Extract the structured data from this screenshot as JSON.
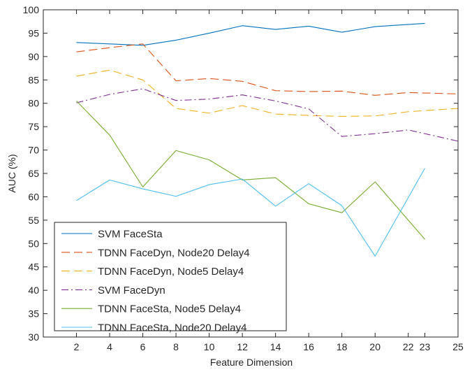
{
  "chart_data": {
    "type": "line",
    "title": "",
    "xlabel": "Feature Dimension",
    "ylabel": "AUC (%)",
    "xlim": [
      0,
      25
    ],
    "ylim": [
      30,
      100
    ],
    "xticks": [
      2,
      4,
      6,
      8,
      10,
      12,
      14,
      16,
      18,
      20,
      22,
      23,
      25
    ],
    "xtick_labels": [
      "2",
      "4",
      "6",
      "8",
      "10",
      "12",
      "14",
      "16",
      "18",
      "20",
      "22",
      "23",
      "25"
    ],
    "yticks": [
      30,
      35,
      40,
      45,
      50,
      55,
      60,
      65,
      70,
      75,
      80,
      85,
      90,
      95,
      100
    ],
    "ytick_labels": [
      "30",
      "35",
      "40",
      "45",
      "50",
      "55",
      "60",
      "65",
      "70",
      "75",
      "80",
      "85",
      "90",
      "95",
      "100"
    ],
    "grid": false,
    "legend_position": "bottom-left",
    "series": [
      {
        "name": "SVM FaceSta",
        "color": "#0072BD",
        "dash": "solid",
        "x": [
          2,
          4,
          6,
          8,
          10,
          12,
          14,
          16,
          18,
          20,
          23
        ],
        "y": [
          93.0,
          92.7,
          92.4,
          93.5,
          95.0,
          96.6,
          95.8,
          96.5,
          95.2,
          96.4,
          97.1
        ]
      },
      {
        "name": "TDNN FaceDyn, Node20 Delay4",
        "color": "#D95319",
        "dash": "dashed",
        "x": [
          2,
          4,
          6,
          8,
          10,
          12,
          14,
          16,
          18,
          20,
          22,
          25
        ],
        "y": [
          91.0,
          91.9,
          92.7,
          84.8,
          85.3,
          84.7,
          82.7,
          82.5,
          82.6,
          81.7,
          82.3,
          82.0
        ]
      },
      {
        "name": "TDNN FaceDyn, Node5 Delay4",
        "color": "#EDB120",
        "dash": "dashed",
        "x": [
          2,
          4,
          6,
          8,
          10,
          12,
          14,
          16,
          18,
          20,
          22,
          25
        ],
        "y": [
          85.8,
          87.1,
          85.0,
          78.9,
          77.9,
          79.5,
          77.7,
          77.4,
          77.2,
          77.3,
          78.2,
          78.9
        ]
      },
      {
        "name": "SVM FaceDyn",
        "color": "#7E2F8E",
        "dash": "dashdot",
        "x": [
          2,
          4,
          6,
          8,
          10,
          12,
          14,
          16,
          18,
          20,
          22,
          25
        ],
        "y": [
          80.1,
          81.9,
          83.1,
          80.6,
          80.9,
          81.8,
          80.5,
          78.8,
          72.9,
          73.5,
          74.3,
          71.9
        ]
      },
      {
        "name": "TDNN FaceSta, Node5 Delay4",
        "color": "#77AC30",
        "dash": "solid",
        "x": [
          2,
          4,
          6,
          8,
          10,
          12,
          14,
          16,
          18,
          20,
          23
        ],
        "y": [
          80.5,
          73.2,
          62.1,
          69.9,
          67.9,
          63.6,
          64.1,
          58.5,
          56.6,
          63.2,
          50.9
        ]
      },
      {
        "name": "TDNN FaceSta, Node20 Delay4",
        "color": "#4DBEEE",
        "dash": "solid",
        "x": [
          2,
          4,
          6,
          8,
          10,
          12,
          14,
          16,
          18,
          20,
          23
        ],
        "y": [
          59.2,
          63.6,
          61.7,
          60.1,
          62.6,
          63.8,
          58.0,
          62.8,
          58.1,
          47.3,
          66.1
        ]
      }
    ]
  }
}
